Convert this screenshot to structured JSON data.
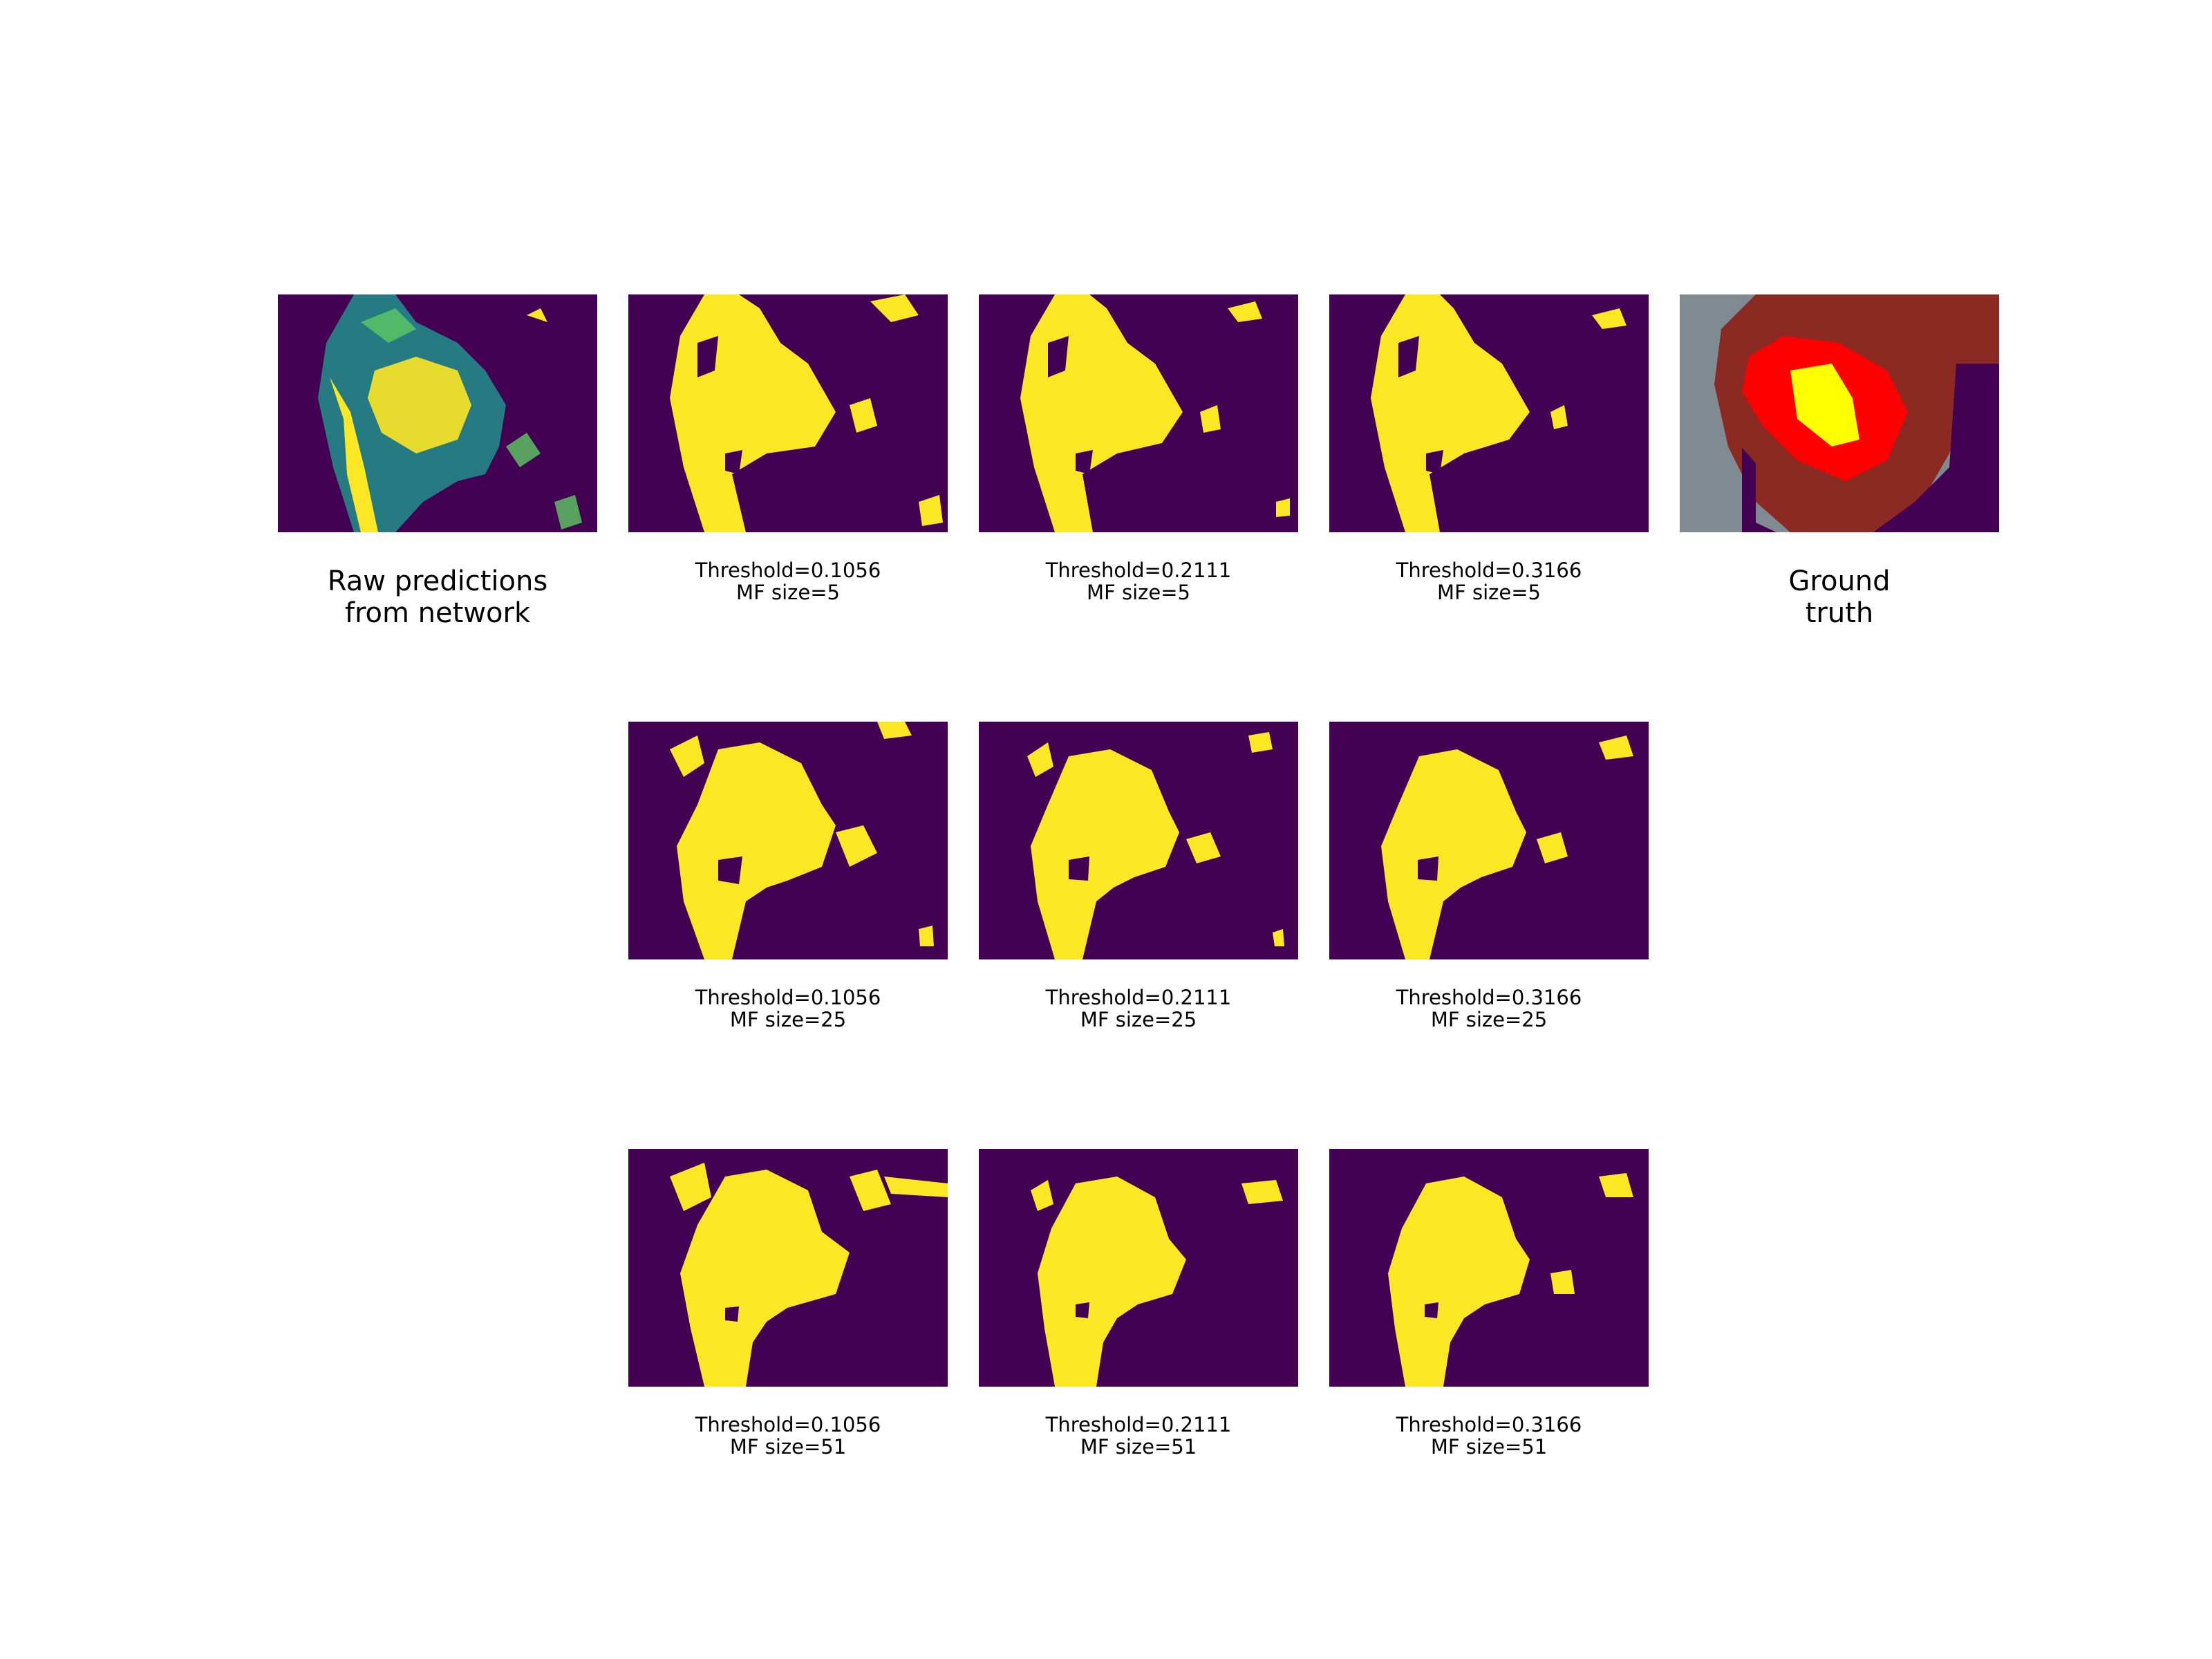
{
  "colors": {
    "background_class": "#440154",
    "foreground_class": "#fde725",
    "raw_mid": "#21918c",
    "gt_outer": "#ff0000",
    "gt_inner": "#ffff00",
    "tissue": "#8a2a22",
    "photo_bg": "#7f8a93"
  },
  "raw_panel": {
    "caption_line1": "Raw predictions",
    "caption_line2": "from network"
  },
  "ground_truth_panel": {
    "caption_line1": "Ground",
    "caption_line2": "truth"
  },
  "rows": [
    {
      "panels": [
        {
          "line1": "Threshold=0.1056",
          "line2": "MF size=5"
        },
        {
          "line1": "Threshold=0.2111",
          "line2": "MF size=5"
        },
        {
          "line1": "Threshold=0.3166",
          "line2": "MF size=5"
        }
      ]
    },
    {
      "panels": [
        {
          "line1": "Threshold=0.1056",
          "line2": "MF size=25"
        },
        {
          "line1": "Threshold=0.2111",
          "line2": "MF size=25"
        },
        {
          "line1": "Threshold=0.3166",
          "line2": "MF size=25"
        }
      ]
    },
    {
      "panels": [
        {
          "line1": "Threshold=0.1056",
          "line2": "MF size=51"
        },
        {
          "line1": "Threshold=0.2111",
          "line2": "MF size=51"
        },
        {
          "line1": "Threshold=0.3166",
          "line2": "MF size=51"
        }
      ]
    }
  ]
}
